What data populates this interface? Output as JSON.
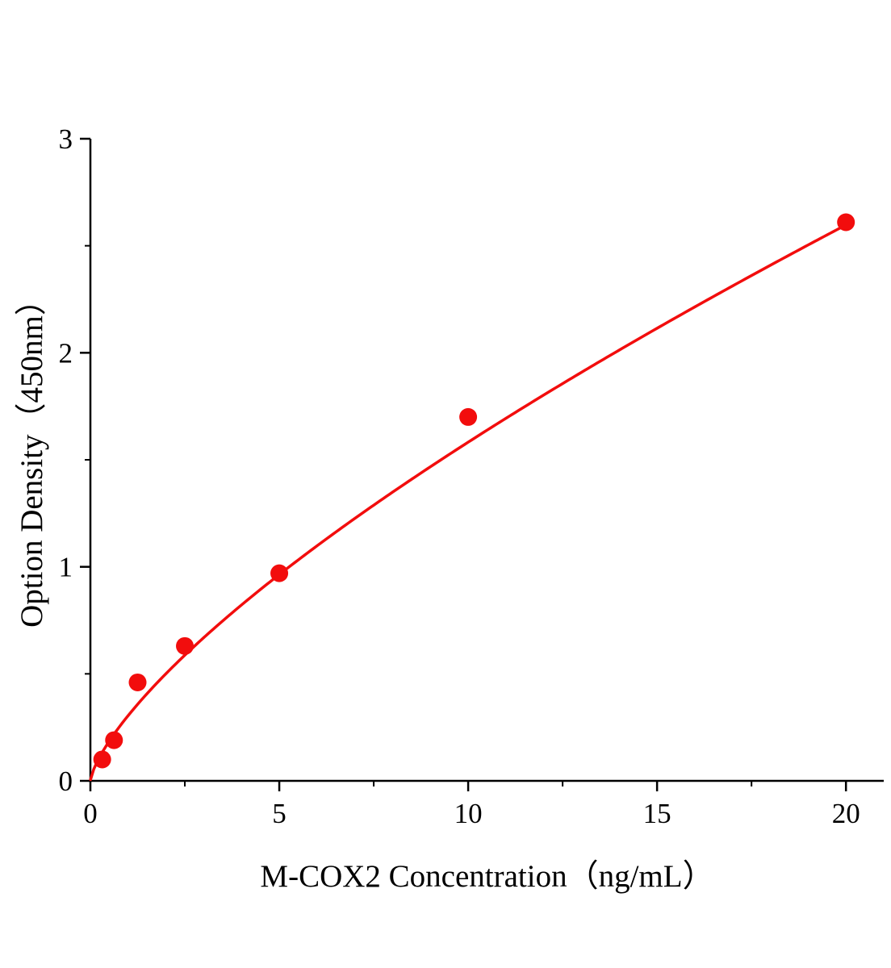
{
  "chart_data": {
    "type": "scatter",
    "title": "",
    "xlabel": "M-COX2 Concentration（ng/mL）",
    "ylabel": "Option Density（450nm）",
    "x": [
      0.313,
      0.625,
      1.25,
      2.5,
      5,
      10,
      20
    ],
    "y": [
      0.1,
      0.19,
      0.46,
      0.63,
      0.97,
      1.7,
      2.61
    ],
    "xlim": [
      0,
      21
    ],
    "ylim": [
      0,
      3
    ],
    "xticks": [
      0,
      5,
      10,
      15,
      20
    ],
    "yticks": [
      0,
      1,
      2,
      3
    ],
    "x_minor_ticks": [
      2.5,
      7.5,
      12.5,
      17.5
    ],
    "y_minor_ticks": [
      0.5,
      1.5,
      2.5
    ],
    "fit_curve": {
      "type": "power",
      "a": 0.305,
      "b": 0.715
    },
    "marker_color": "#f20d0d",
    "line_color": "#f20d0d",
    "axis_color": "#000000",
    "grid": false,
    "legend_position": "none"
  }
}
